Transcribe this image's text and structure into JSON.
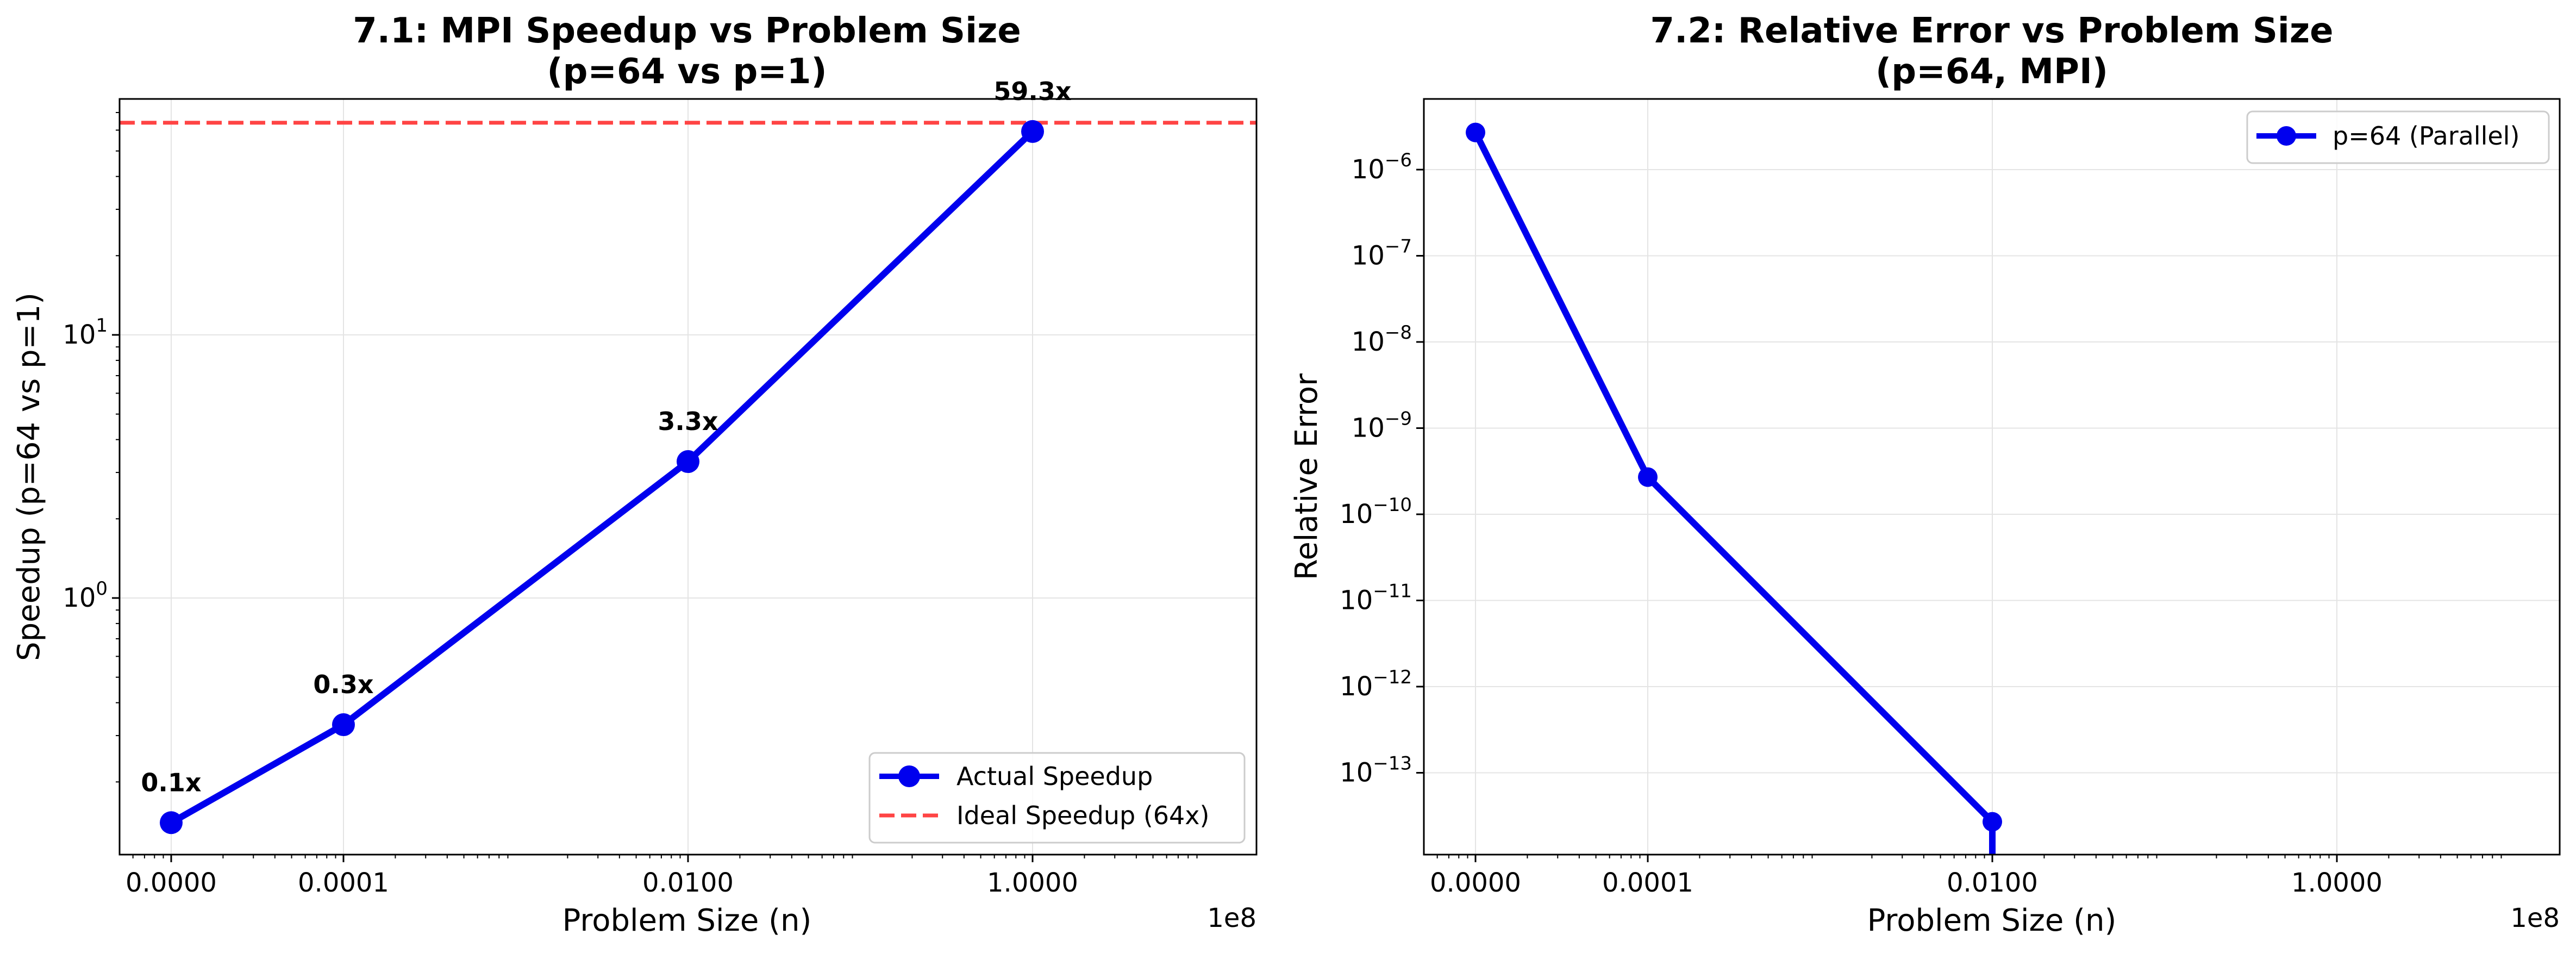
{
  "chart_data": [
    {
      "type": "line",
      "title_lines": [
        "7.1: MPI Speedup vs Problem Size",
        "(p=64 vs p=1)"
      ],
      "xlabel": "Problem Size (n)",
      "ylabel": "Speedup (p=64 vs p=1)",
      "x_scale": "log",
      "y_scale": "log",
      "x_offset_text": "1e8",
      "x_ticks": [
        "0.0000",
        "0.0001",
        "0.0100",
        "1.0000"
      ],
      "y_ticks": [
        {
          "base": "10",
          "exp": "0"
        },
        {
          "base": "10",
          "exp": "1"
        }
      ],
      "series": [
        {
          "name": "Actual Speedup",
          "color": "#0000ee",
          "x": [
            1000,
            10000,
            1000000,
            100000000
          ],
          "y": [
            0.14,
            0.33,
            3.3,
            59.3
          ]
        }
      ],
      "annotations": [
        "0.1x",
        "0.3x",
        "3.3x",
        "59.3x"
      ],
      "reference_line": {
        "name": "Ideal Speedup (64x)",
        "value": 64,
        "color": "#ff4444"
      },
      "grid": true,
      "legend_position": "lower-right"
    },
    {
      "type": "line",
      "title_lines": [
        "7.2: Relative Error vs Problem Size",
        "(p=64, MPI)"
      ],
      "xlabel": "Problem Size (n)",
      "ylabel": "Relative Error",
      "x_scale": "log",
      "y_scale": "log",
      "x_offset_text": "1e8",
      "x_ticks": [
        "0.0000",
        "0.0001",
        "0.0100",
        "1.0000"
      ],
      "y_ticks": [
        {
          "base": "10",
          "exp": "−13"
        },
        {
          "base": "10",
          "exp": "−12"
        },
        {
          "base": "10",
          "exp": "−11"
        },
        {
          "base": "10",
          "exp": "−10"
        },
        {
          "base": "10",
          "exp": "−9"
        },
        {
          "base": "10",
          "exp": "−8"
        },
        {
          "base": "10",
          "exp": "−7"
        },
        {
          "base": "10",
          "exp": "−6"
        }
      ],
      "series": [
        {
          "name": "p=64 (Parallel)",
          "color": "#0000ee",
          "x": [
            1000,
            10000,
            1000000
          ],
          "y": [
            2.7e-06,
            2.7e-10,
            2.7e-14
          ]
        }
      ],
      "grid": true,
      "legend_position": "upper-right"
    }
  ]
}
